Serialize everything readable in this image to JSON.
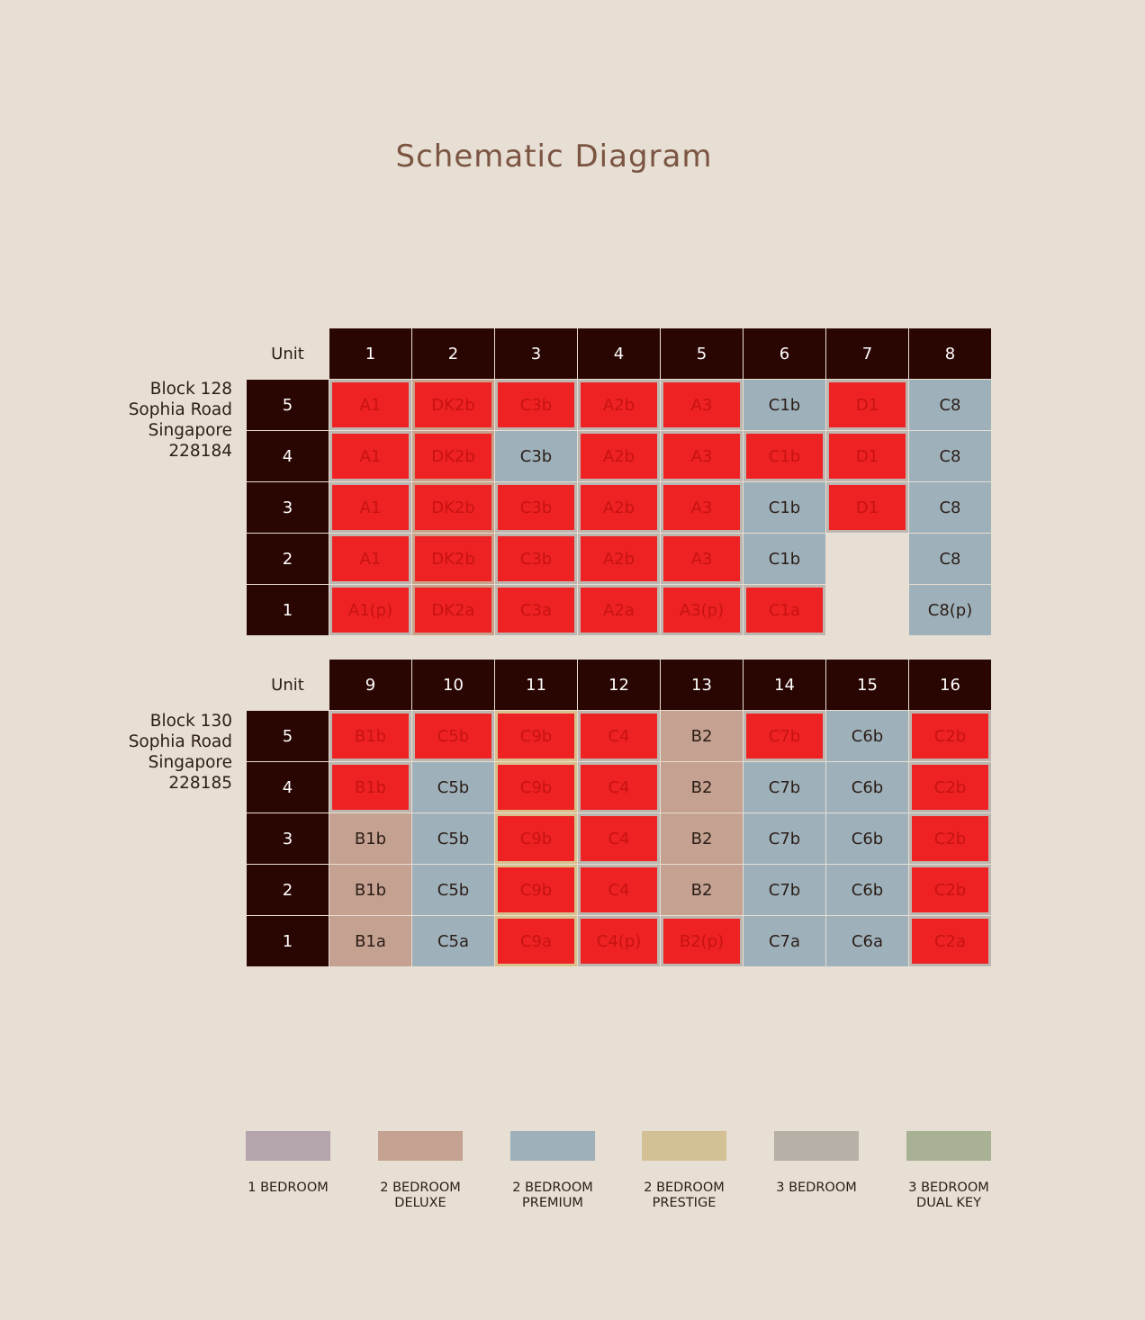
{
  "title": "Schematic Diagram",
  "colors": {
    "header": "#2a0603",
    "premium": "#9eb1bb",
    "deluxe": "#c4a190",
    "red_highlight": "#ee2222",
    "background": "#e7dfd3"
  },
  "blocks": [
    {
      "label": [
        "Block 128",
        "Sophia Road",
        "Singapore",
        "228184"
      ],
      "unit_label": "Unit",
      "units": [
        "1",
        "2",
        "3",
        "4",
        "5",
        "6",
        "7",
        "8"
      ],
      "rows": [
        {
          "floor": "5",
          "cells": [
            {
              "text": "A1",
              "style": "red"
            },
            {
              "text": "DK2b",
              "style": "red tan"
            },
            {
              "text": "C3b",
              "style": "red"
            },
            {
              "text": "A2b",
              "style": "red"
            },
            {
              "text": "A3",
              "style": "red"
            },
            {
              "text": "C1b",
              "style": "premium"
            },
            {
              "text": "D1",
              "style": "red"
            },
            {
              "text": "C8",
              "style": "premium"
            }
          ]
        },
        {
          "floor": "4",
          "cells": [
            {
              "text": "A1",
              "style": "red"
            },
            {
              "text": "DK2b",
              "style": "red tan"
            },
            {
              "text": "C3b",
              "style": "premium"
            },
            {
              "text": "A2b",
              "style": "red"
            },
            {
              "text": "A3",
              "style": "red"
            },
            {
              "text": "C1b",
              "style": "red"
            },
            {
              "text": "D1",
              "style": "red"
            },
            {
              "text": "C8",
              "style": "premium"
            }
          ]
        },
        {
          "floor": "3",
          "cells": [
            {
              "text": "A1",
              "style": "red"
            },
            {
              "text": "DK2b",
              "style": "red tan"
            },
            {
              "text": "C3b",
              "style": "red"
            },
            {
              "text": "A2b",
              "style": "red"
            },
            {
              "text": "A3",
              "style": "red"
            },
            {
              "text": "C1b",
              "style": "premium"
            },
            {
              "text": "D1",
              "style": "red"
            },
            {
              "text": "C8",
              "style": "premium"
            }
          ]
        },
        {
          "floor": "2",
          "cells": [
            {
              "text": "A1",
              "style": "red"
            },
            {
              "text": "DK2b",
              "style": "red tan"
            },
            {
              "text": "C3b",
              "style": "red"
            },
            {
              "text": "A2b",
              "style": "red"
            },
            {
              "text": "A3",
              "style": "red"
            },
            {
              "text": "C1b",
              "style": "premium"
            },
            {
              "text": "",
              "style": "empty"
            },
            {
              "text": "C8",
              "style": "premium"
            }
          ]
        },
        {
          "floor": "1",
          "cells": [
            {
              "text": "A1(p)",
              "style": "red"
            },
            {
              "text": "DK2a",
              "style": "red tan"
            },
            {
              "text": "C3a",
              "style": "red"
            },
            {
              "text": "A2a",
              "style": "red"
            },
            {
              "text": "A3(p)",
              "style": "red"
            },
            {
              "text": "C1a",
              "style": "red"
            },
            {
              "text": "",
              "style": "empty"
            },
            {
              "text": "C8(p)",
              "style": "premium"
            }
          ]
        }
      ]
    },
    {
      "label": [
        "Block 130",
        "Sophia Road",
        "Singapore",
        "228185"
      ],
      "unit_label": "Unit",
      "units": [
        "9",
        "10",
        "11",
        "12",
        "13",
        "14",
        "15",
        "16"
      ],
      "rows": [
        {
          "floor": "5",
          "cells": [
            {
              "text": "B1b",
              "style": "red"
            },
            {
              "text": "C5b",
              "style": "red"
            },
            {
              "text": "C9b",
              "style": "red gold"
            },
            {
              "text": "C4",
              "style": "red"
            },
            {
              "text": "B2",
              "style": "deluxe"
            },
            {
              "text": "C7b",
              "style": "red"
            },
            {
              "text": "C6b",
              "style": "premium"
            },
            {
              "text": "C2b",
              "style": "red"
            }
          ]
        },
        {
          "floor": "4",
          "cells": [
            {
              "text": "B1b",
              "style": "red"
            },
            {
              "text": "C5b",
              "style": "premium"
            },
            {
              "text": "C9b",
              "style": "red gold"
            },
            {
              "text": "C4",
              "style": "red"
            },
            {
              "text": "B2",
              "style": "deluxe"
            },
            {
              "text": "C7b",
              "style": "premium"
            },
            {
              "text": "C6b",
              "style": "premium"
            },
            {
              "text": "C2b",
              "style": "red"
            }
          ]
        },
        {
          "floor": "3",
          "cells": [
            {
              "text": "B1b",
              "style": "deluxe"
            },
            {
              "text": "C5b",
              "style": "premium"
            },
            {
              "text": "C9b",
              "style": "red gold"
            },
            {
              "text": "C4",
              "style": "red"
            },
            {
              "text": "B2",
              "style": "deluxe"
            },
            {
              "text": "C7b",
              "style": "premium"
            },
            {
              "text": "C6b",
              "style": "premium"
            },
            {
              "text": "C2b",
              "style": "red"
            }
          ]
        },
        {
          "floor": "2",
          "cells": [
            {
              "text": "B1b",
              "style": "deluxe"
            },
            {
              "text": "C5b",
              "style": "premium"
            },
            {
              "text": "C9b",
              "style": "red gold"
            },
            {
              "text": "C4",
              "style": "red"
            },
            {
              "text": "B2",
              "style": "deluxe"
            },
            {
              "text": "C7b",
              "style": "premium"
            },
            {
              "text": "C6b",
              "style": "premium"
            },
            {
              "text": "C2b",
              "style": "red"
            }
          ]
        },
        {
          "floor": "1",
          "cells": [
            {
              "text": "B1a",
              "style": "deluxe"
            },
            {
              "text": "C5a",
              "style": "premium"
            },
            {
              "text": "C9a",
              "style": "red gold"
            },
            {
              "text": "C4(p)",
              "style": "red"
            },
            {
              "text": "B2(p)",
              "style": "red"
            },
            {
              "text": "C7a",
              "style": "premium"
            },
            {
              "text": "C6a",
              "style": "premium"
            },
            {
              "text": "C2a",
              "style": "red"
            }
          ]
        }
      ]
    }
  ],
  "legend": [
    {
      "label": "1 BEDROOM",
      "color": "#b4a4ab"
    },
    {
      "label": "2 BEDROOM\nDELUXE",
      "color": "#c4a190"
    },
    {
      "label": "2 BEDROOM\nPREMIUM",
      "color": "#9eb1bb"
    },
    {
      "label": "2 BEDROOM\nPRESTIGE",
      "color": "#d3c195"
    },
    {
      "label": "3 BEDROOM",
      "color": "#b6b0a6"
    },
    {
      "label": "3 BEDROOM\nDUAL KEY",
      "color": "#a8b194"
    }
  ]
}
